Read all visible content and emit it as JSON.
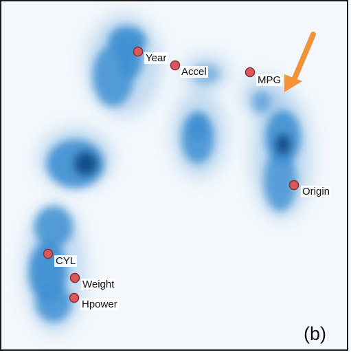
{
  "panel_label": "(b)",
  "colors": {
    "density": "#3f8fd2",
    "density_dark": "#14508c",
    "marker_fill": "#d9595d",
    "marker_stroke": "#8a2c30",
    "arrow": "#f2923b"
  },
  "variables": [
    {
      "id": "year",
      "label": "Year"
    },
    {
      "id": "accel",
      "label": "Accel"
    },
    {
      "id": "mpg",
      "label": "MPG"
    },
    {
      "id": "origin",
      "label": "Origin"
    },
    {
      "id": "cyl",
      "label": "CYL"
    },
    {
      "id": "weight",
      "label": "Weight"
    },
    {
      "id": "hpower",
      "label": "Hpower"
    }
  ]
}
